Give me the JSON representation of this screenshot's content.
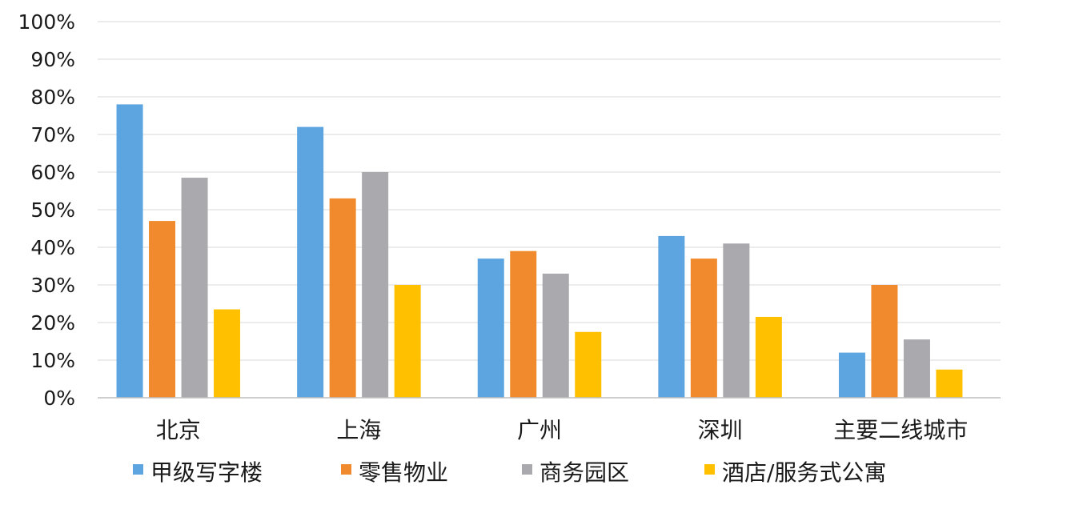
{
  "chart_data": {
    "type": "bar",
    "title": "",
    "xlabel": "",
    "ylabel": "",
    "ylim": [
      0,
      100
    ],
    "yticks": [
      0,
      10,
      20,
      30,
      40,
      50,
      60,
      70,
      80,
      90,
      100
    ],
    "ytick_labels": [
      "0%",
      "10%",
      "20%",
      "30%",
      "40%",
      "50%",
      "60%",
      "70%",
      "80%",
      "90%",
      "100%"
    ],
    "grid": true,
    "legend_position": "bottom",
    "categories": [
      "北京",
      "上海",
      "广州",
      "深圳",
      "主要二线城市"
    ],
    "series": [
      {
        "name": "甲级写字楼",
        "color": "#5DA5E0",
        "values": [
          78,
          72,
          37,
          43,
          12
        ]
      },
      {
        "name": "零售物业",
        "color": "#F08A2C",
        "values": [
          47,
          53,
          39,
          37,
          30
        ]
      },
      {
        "name": "商务园区",
        "color": "#A9A9AE",
        "values": [
          58.5,
          60,
          33,
          41,
          15.5
        ]
      },
      {
        "name": "酒店/服务式公寓",
        "color": "#FFC000",
        "values": [
          23.5,
          30,
          17.5,
          21.5,
          7.5
        ]
      }
    ]
  }
}
